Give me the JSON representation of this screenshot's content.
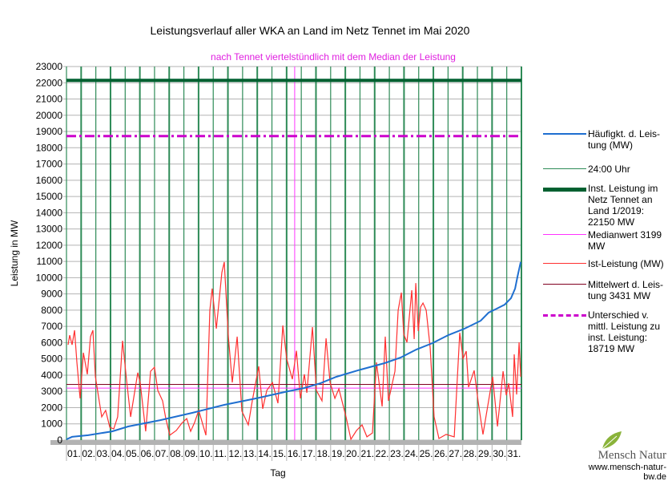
{
  "chart_data": {
    "type": "line",
    "title": "Leistungsverlauf aller WKA an Land im Netz Tennet im Mai 2020",
    "subtitle": "nach Tennet viertelstündlich mit dem Median der Leistung",
    "xlabel": "Tag",
    "ylabel": "Leistung in MW",
    "ylim": [
      0,
      23000
    ],
    "yticks": [
      0,
      1000,
      2000,
      3000,
      4000,
      5000,
      6000,
      7000,
      8000,
      9000,
      10000,
      11000,
      12000,
      13000,
      14000,
      15000,
      16000,
      17000,
      18000,
      19000,
      20000,
      21000,
      22000,
      23000
    ],
    "xticks": [
      "01.",
      "02.",
      "03.",
      "04.",
      "05.",
      "06.",
      "07.",
      "08.",
      "09.",
      "10.",
      "11.",
      "12.",
      "13.",
      "14.",
      "15.",
      "16.",
      "17.",
      "18.",
      "19.",
      "20.",
      "21.",
      "22.",
      "23.",
      "24.",
      "25.",
      "26.",
      "27.",
      "28.",
      "29.",
      "30.",
      "31."
    ],
    "xlim": [
      1,
      32
    ],
    "grid": true,
    "legend": "right",
    "series": [
      {
        "name": "Häufigkt. d. Leistung (MW)",
        "color": "#1f6fd0",
        "points": [
          [
            1.0,
            50
          ],
          [
            1.38,
            200
          ],
          [
            2.48,
            300
          ],
          [
            4.11,
            540
          ],
          [
            5.2,
            840
          ],
          [
            7.39,
            1230
          ],
          [
            9.57,
            1680
          ],
          [
            11.75,
            2170
          ],
          [
            13.94,
            2570
          ],
          [
            16.12,
            3010
          ],
          [
            17.21,
            3210
          ],
          [
            18.3,
            3500
          ],
          [
            19.39,
            3900
          ],
          [
            21.03,
            4340
          ],
          [
            22.67,
            4740
          ],
          [
            23.76,
            5080
          ],
          [
            24.85,
            5580
          ],
          [
            25.94,
            5970
          ],
          [
            27.03,
            6470
          ],
          [
            28.12,
            6860
          ],
          [
            29.22,
            7350
          ],
          [
            29.76,
            7850
          ],
          [
            30.31,
            8090
          ],
          [
            30.86,
            8340
          ],
          [
            31.29,
            8740
          ],
          [
            31.57,
            9330
          ],
          [
            31.73,
            10070
          ],
          [
            31.95,
            10960
          ]
        ]
      },
      {
        "name": "Ist-Leistung (MW)",
        "color": "#ff3030",
        "points": [
          [
            1.11,
            5870
          ],
          [
            1.22,
            6460
          ],
          [
            1.38,
            5870
          ],
          [
            1.55,
            6760
          ],
          [
            1.71,
            4790
          ],
          [
            1.93,
            2570
          ],
          [
            2.15,
            5380
          ],
          [
            2.42,
            4050
          ],
          [
            2.64,
            6370
          ],
          [
            2.8,
            6760
          ],
          [
            2.97,
            3900
          ],
          [
            3.4,
            1430
          ],
          [
            3.67,
            1830
          ],
          [
            3.95,
            790
          ],
          [
            4.22,
            690
          ],
          [
            4.49,
            1430
          ],
          [
            4.82,
            6120
          ],
          [
            5.09,
            3750
          ],
          [
            5.37,
            1430
          ],
          [
            5.86,
            4150
          ],
          [
            6.02,
            3550
          ],
          [
            6.4,
            540
          ],
          [
            6.73,
            4240
          ],
          [
            7.0,
            4490
          ],
          [
            7.22,
            3060
          ],
          [
            7.55,
            2420
          ],
          [
            7.77,
            1330
          ],
          [
            8.04,
            300
          ],
          [
            8.48,
            590
          ],
          [
            8.86,
            1040
          ],
          [
            9.19,
            1330
          ],
          [
            9.46,
            540
          ],
          [
            9.73,
            1090
          ],
          [
            10.01,
            1830
          ],
          [
            10.5,
            300
          ],
          [
            10.77,
            8000
          ],
          [
            10.93,
            9330
          ],
          [
            11.21,
            6860
          ],
          [
            11.59,
            10320
          ],
          [
            11.75,
            10960
          ],
          [
            12.03,
            6370
          ],
          [
            12.3,
            3550
          ],
          [
            12.63,
            6370
          ],
          [
            12.95,
            1780
          ],
          [
            13.39,
            940
          ],
          [
            13.66,
            2420
          ],
          [
            14.1,
            4540
          ],
          [
            14.37,
            1930
          ],
          [
            14.65,
            3060
          ],
          [
            15.03,
            3550
          ],
          [
            15.41,
            2270
          ],
          [
            15.74,
            7060
          ],
          [
            16.01,
            4990
          ],
          [
            16.39,
            3750
          ],
          [
            16.67,
            5500
          ],
          [
            16.94,
            2570
          ],
          [
            17.21,
            4050
          ],
          [
            17.38,
            2910
          ],
          [
            17.76,
            6960
          ],
          [
            18.03,
            3060
          ],
          [
            18.41,
            2420
          ],
          [
            18.69,
            6270
          ],
          [
            18.96,
            3550
          ],
          [
            19.29,
            2570
          ],
          [
            19.56,
            3160
          ],
          [
            20.05,
            1430
          ],
          [
            20.38,
            50
          ],
          [
            20.76,
            590
          ],
          [
            21.14,
            940
          ],
          [
            21.47,
            200
          ],
          [
            21.85,
            440
          ],
          [
            22.12,
            4790
          ],
          [
            22.51,
            2070
          ],
          [
            22.72,
            6370
          ],
          [
            22.94,
            2420
          ],
          [
            23.38,
            4240
          ],
          [
            23.6,
            8000
          ],
          [
            23.82,
            9080
          ],
          [
            23.98,
            6520
          ],
          [
            24.2,
            6020
          ],
          [
            24.53,
            9230
          ],
          [
            24.69,
            6220
          ],
          [
            24.8,
            9670
          ],
          [
            24.97,
            6710
          ],
          [
            25.13,
            8190
          ],
          [
            25.29,
            8440
          ],
          [
            25.51,
            8000
          ],
          [
            25.78,
            5730
          ],
          [
            26.05,
            1430
          ],
          [
            26.38,
            100
          ],
          [
            26.87,
            350
          ],
          [
            27.42,
            200
          ],
          [
            27.8,
            6610
          ],
          [
            28.02,
            5030
          ],
          [
            28.24,
            5480
          ],
          [
            28.4,
            3260
          ],
          [
            28.78,
            4290
          ],
          [
            29.06,
            2320
          ],
          [
            29.38,
            350
          ],
          [
            29.88,
            3060
          ],
          [
            30.04,
            3900
          ],
          [
            30.37,
            840
          ],
          [
            30.75,
            4240
          ],
          [
            30.97,
            2760
          ],
          [
            31.13,
            3500
          ],
          [
            31.4,
            1430
          ],
          [
            31.51,
            5280
          ],
          [
            31.67,
            2810
          ],
          [
            31.84,
            6020
          ],
          [
            31.95,
            3900
          ]
        ]
      }
    ],
    "hlines": [
      {
        "name": "Inst. Leistung im Netz Tennet an Land 1/2019: 22150  MW",
        "value": 22150,
        "color": "#006030",
        "style": "thick"
      },
      {
        "name": "Unterschied v. mittl. Leistung zu inst. Leistung: 18719 MW",
        "value": 18719,
        "color": "#cc00cc",
        "style": "dashdot"
      },
      {
        "name": "Mittelwert d. Leistung 3431 MW",
        "value": 3431,
        "color": "#800020",
        "style": "solid"
      },
      {
        "name": "Medianwert 3199 MW",
        "value": 3199,
        "color": "#ff33ff",
        "style": "solid"
      }
    ],
    "vlines": {
      "name": "24:00 Uhr",
      "color": "#2e8b57"
    },
    "median_vline_day": 16.55
  },
  "legend": [
    {
      "label": "Häufigkt. d. Leis-tung (MW)",
      "color": "#1f6fd0"
    },
    {
      "label": "24:00 Uhr",
      "color": "#2e8b57"
    },
    {
      "label": "Inst. Leistung im Netz Tennet an Land 1/2019: 22150  MW",
      "color": "#006030"
    },
    {
      "label": "Medianwert 3199 MW",
      "color": "#ff33ff"
    },
    {
      "label": "Ist-Leistung (MW)",
      "color": "#ff3030"
    },
    {
      "label": "Mittelwert d. Leis-tung 3431 MW",
      "color": "#800020"
    },
    {
      "label": "Unterschied v. mittl. Leistung zu inst. Leistung: 18719 MW",
      "color": "#cc00cc"
    }
  ],
  "logo": {
    "name": "Mensch Natur",
    "url": "www.mensch-natur-bw.de"
  }
}
